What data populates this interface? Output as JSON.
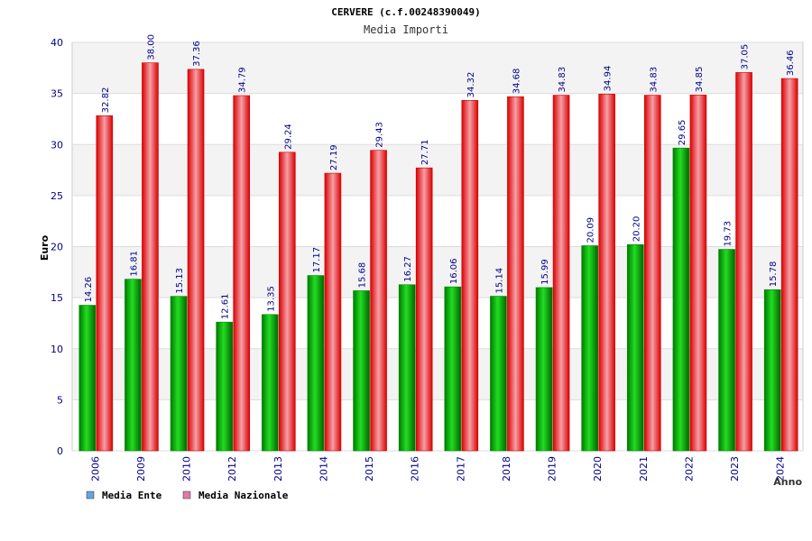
{
  "chart_data": {
    "type": "bar",
    "title": "CERVERE (c.f.00248390049)",
    "subtitle": "Media Importi",
    "ylabel": "Euro",
    "xlabel": "Anno",
    "ylim": [
      0,
      40
    ],
    "yticks": [
      0,
      5,
      10,
      15,
      20,
      25,
      30,
      35,
      40
    ],
    "categories": [
      "2006",
      "2009",
      "2010",
      "2012",
      "2013",
      "2014",
      "2015",
      "2016",
      "2017",
      "2018",
      "2019",
      "2020",
      "2021",
      "2022",
      "2023",
      "2024"
    ],
    "series": [
      {
        "name": "Media Ente",
        "color": "#00bb00",
        "legend_color": "#66a3e0",
        "values": [
          14.26,
          16.81,
          15.13,
          12.61,
          13.35,
          17.17,
          15.68,
          16.27,
          16.06,
          15.14,
          15.99,
          20.09,
          20.2,
          29.65,
          19.73,
          15.78
        ],
        "labels": [
          "14.26",
          "16.81",
          "15.13",
          "12.61",
          "13.35",
          "17.17",
          "15.68",
          "16.27",
          "16.06",
          "15.14",
          "15.99",
          "20.09",
          "20.20",
          "29.65",
          "19.73",
          "15.78"
        ]
      },
      {
        "name": "Media Nazionale",
        "color": "#ee1111",
        "legend_color": "#e07aa8",
        "values": [
          32.82,
          38.0,
          37.36,
          34.79,
          29.24,
          27.19,
          29.43,
          27.71,
          34.32,
          34.68,
          34.83,
          34.94,
          34.83,
          34.85,
          37.05,
          36.46
        ],
        "labels": [
          "32.82",
          "38.00",
          "37.36",
          "34.79",
          "29.24",
          "27.19",
          "29.43",
          "27.71",
          "34.32",
          "34.68",
          "34.83",
          "34.94",
          "34.83",
          "34.85",
          "37.05",
          "36.46"
        ]
      }
    ],
    "grid": true,
    "legend_position": "bottom-left"
  }
}
